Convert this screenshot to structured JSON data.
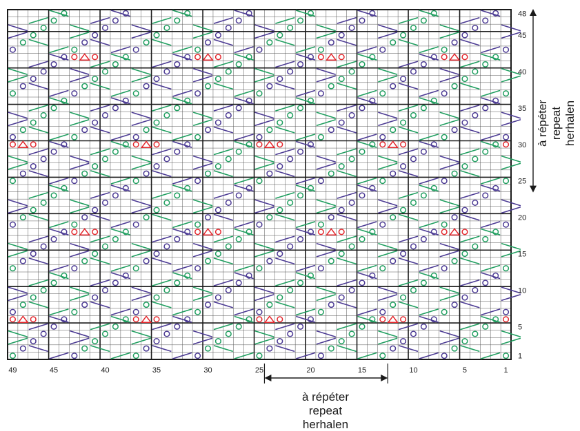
{
  "chart": {
    "columns": 49,
    "rows": 48,
    "column_numbers": [
      "49",
      "45",
      "40",
      "35",
      "30",
      "25",
      "20",
      "15",
      "10",
      "5",
      "1"
    ],
    "row_numbers": [
      "48",
      "45",
      "40",
      "35",
      "30",
      "25",
      "20",
      "15",
      "10",
      "5",
      "1"
    ],
    "column_number_values": [
      49,
      45,
      40,
      35,
      30,
      25,
      20,
      15,
      10,
      5,
      1
    ],
    "row_number_values": [
      48,
      45,
      40,
      35,
      30,
      25,
      20,
      15,
      10,
      5,
      1
    ],
    "horizontal_repeat": {
      "from_stitch": 24,
      "to_stitch": 13
    },
    "vertical_repeat": {
      "from_row": 24,
      "to_row": 48
    }
  },
  "repeat_label": {
    "line1": "à répéter",
    "line2": "repeat",
    "line3": "herhalen"
  },
  "symbols": {
    "green": "#1f9e5f",
    "purple": "#4b3a93",
    "red": "#e3262c",
    "black": "#1a1a1a",
    "legend": [
      "knit-2-together-right",
      "slip-slip-knit-left",
      "yarn-over-circle",
      "triangle-decrease"
    ]
  }
}
